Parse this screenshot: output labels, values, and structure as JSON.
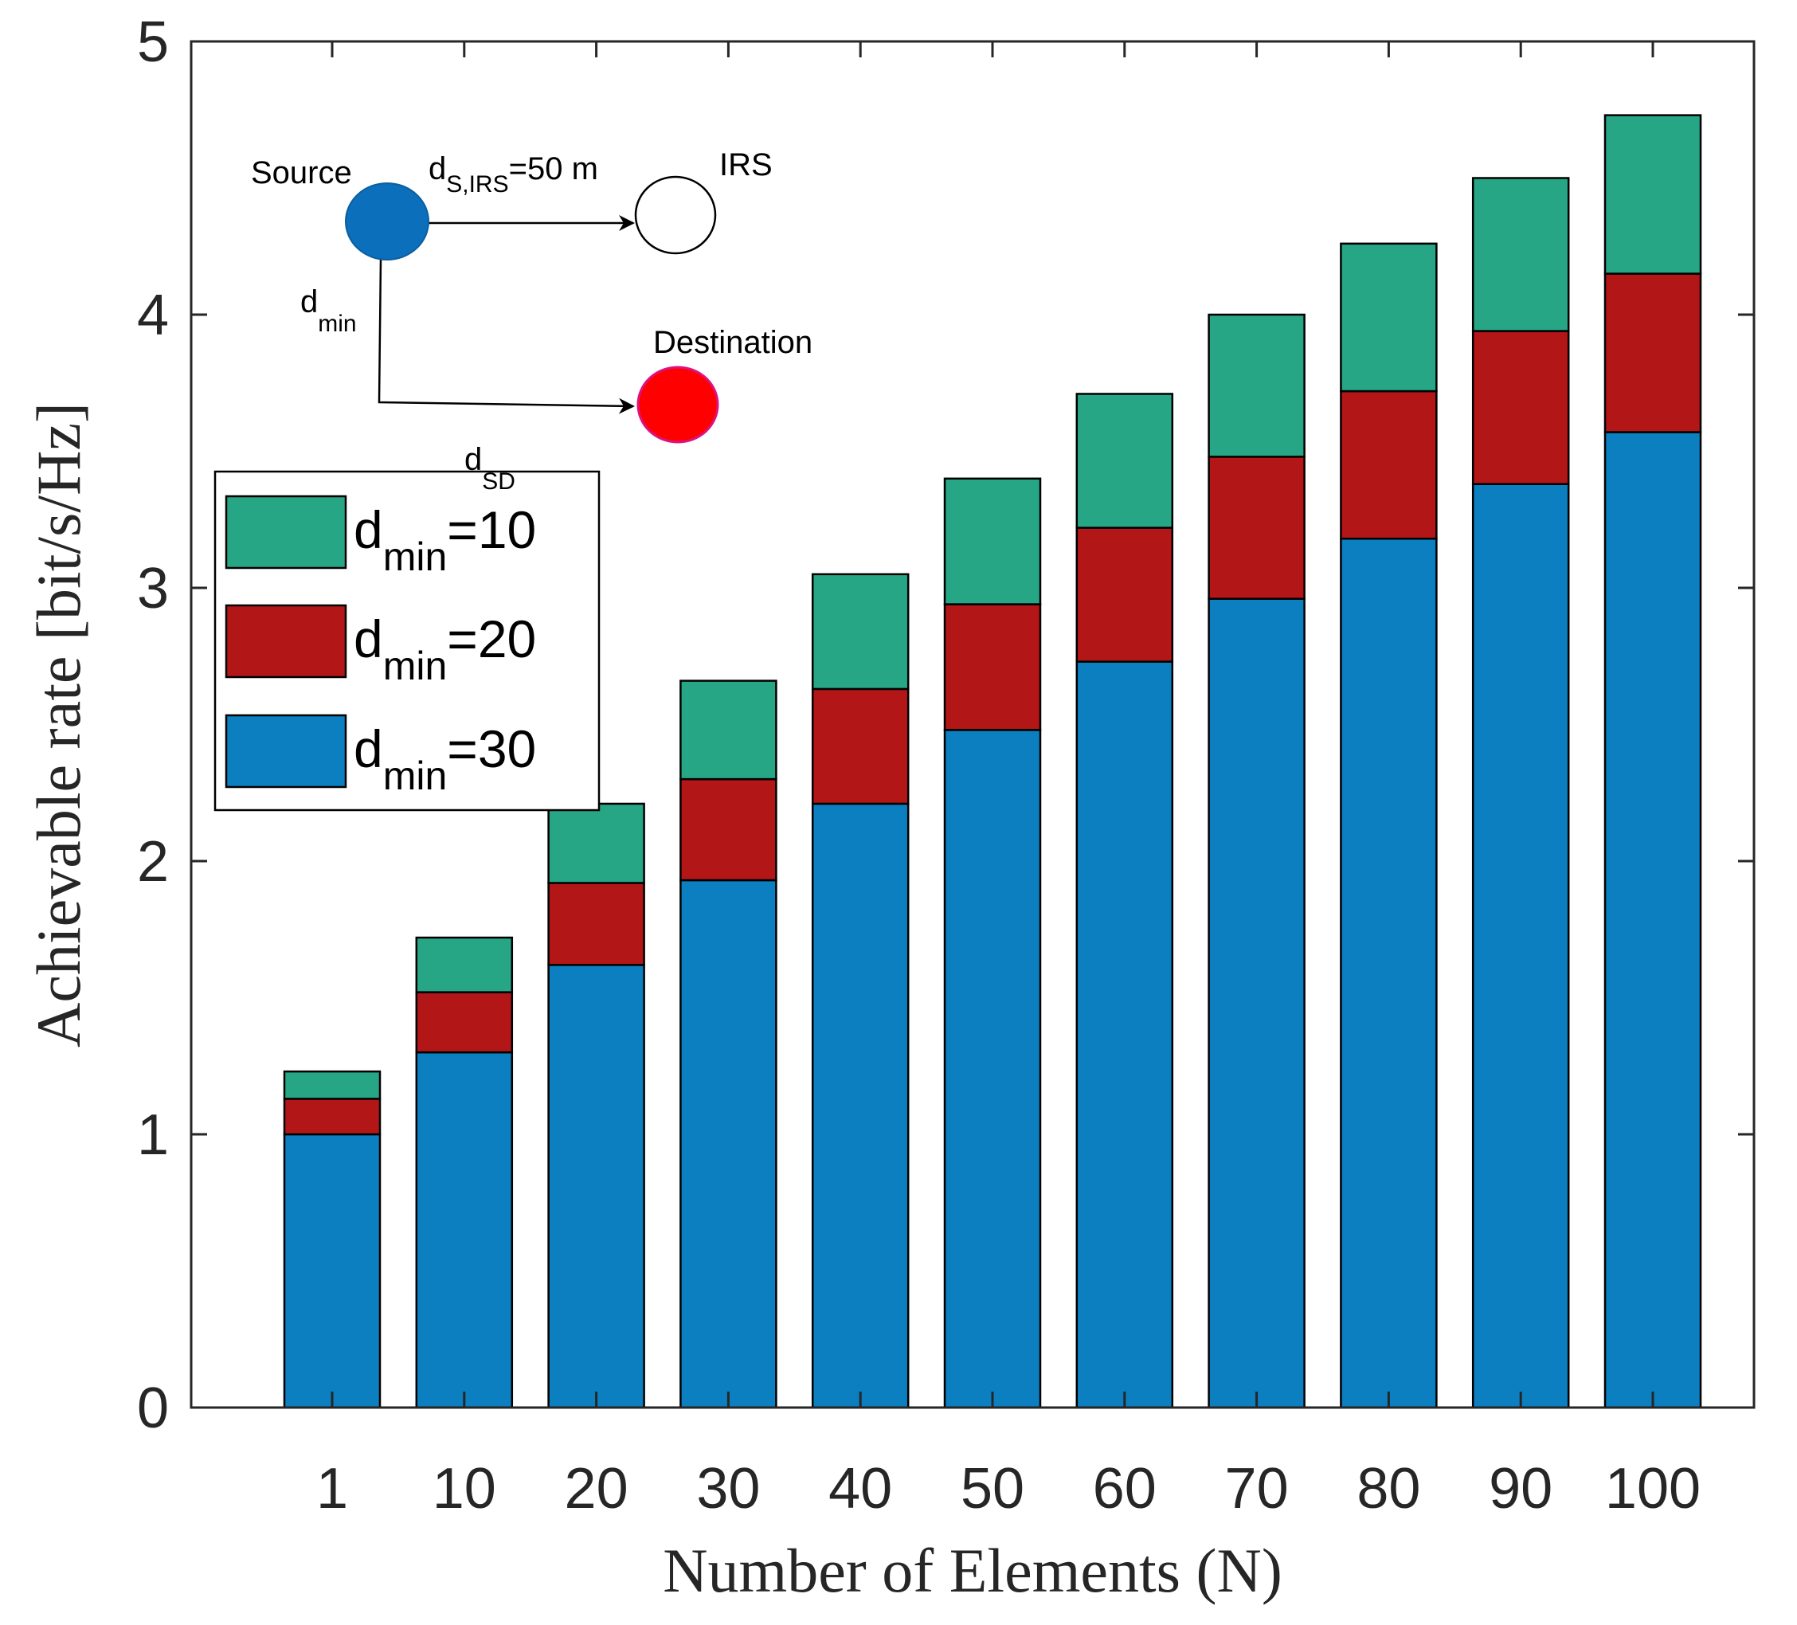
{
  "chart_data": {
    "type": "bar",
    "stacked": true,
    "title": "",
    "xlabel": "Number of Elements (N)",
    "ylabel": "Achievable rate [bit/s/Hz]",
    "ylim": [
      0,
      5
    ],
    "yticks": [
      "0",
      "1",
      "2",
      "3",
      "4",
      "5"
    ],
    "categories": [
      "1",
      "10",
      "20",
      "30",
      "40",
      "50",
      "60",
      "70",
      "80",
      "90",
      "100"
    ],
    "series": [
      {
        "name": "d_min=30",
        "legend_base": "d",
        "legend_sub": "min",
        "legend_tail": "=30",
        "color": "#0b7fbf",
        "values": [
          1.0,
          1.3,
          1.62,
          1.93,
          2.21,
          2.48,
          2.73,
          2.96,
          3.18,
          3.38,
          3.57
        ]
      },
      {
        "name": "d_min=20",
        "legend_base": "d",
        "legend_sub": "min",
        "legend_tail": "=20",
        "color": "#b21617",
        "values": [
          0.13,
          0.22,
          0.3,
          0.37,
          0.42,
          0.46,
          0.49,
          0.52,
          0.54,
          0.56,
          0.58
        ]
      },
      {
        "name": "d_min=10",
        "legend_base": "d",
        "legend_sub": "min",
        "legend_tail": "=10",
        "color": "#27a685",
        "values": [
          0.1,
          0.2,
          0.29,
          0.36,
          0.42,
          0.46,
          0.49,
          0.52,
          0.54,
          0.56,
          0.58
        ]
      }
    ],
    "legend_order": [
      "d_min=10",
      "d_min=20",
      "d_min=30"
    ],
    "legend_position": "top-left"
  },
  "inset": {
    "source_label": "Source",
    "irs_label": "IRS",
    "destination_label": "Destination",
    "d_sirs_base": "d",
    "d_sirs_sub": "S,IRS",
    "d_sirs_tail": "=50 m",
    "dmin_base": "d",
    "dmin_sub": "min",
    "dsd_base": "d",
    "dsd_sub": "SD",
    "source_color": "#0b6fbb",
    "destination_color": "#ff0000",
    "destination_edge": "#e0107f"
  }
}
